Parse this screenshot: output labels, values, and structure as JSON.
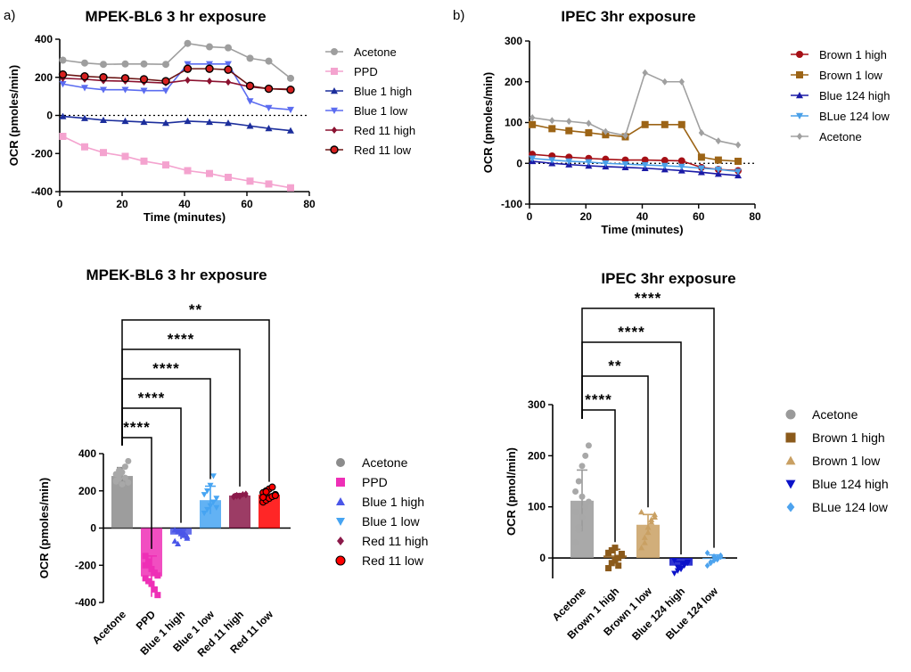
{
  "panel_labels": {
    "a": "a)",
    "b": "b)"
  },
  "chart_data": [
    {
      "id": "mpek_line",
      "type": "line",
      "title": "MPEK-BL6 3 hr exposure",
      "xlabel": "Time (minutes)",
      "ylabel": "OCR (pmoles/min)",
      "xlim": [
        0,
        80
      ],
      "ylim": [
        -400,
        400
      ],
      "xticks": [
        0,
        20,
        40,
        60,
        80
      ],
      "yticks": [
        -400,
        -200,
        0,
        200,
        400
      ],
      "zero_line": "dotted",
      "legend": "right",
      "x": [
        1,
        8,
        14,
        21,
        27,
        34,
        41,
        48,
        54,
        61,
        67,
        74
      ],
      "series": [
        {
          "name": "Acetone",
          "color": "#9e9e9e",
          "marker": "circle",
          "values": [
            290,
            275,
            268,
            270,
            270,
            268,
            378,
            360,
            355,
            300,
            285,
            195
          ]
        },
        {
          "name": "PPD",
          "color": "#f4a3cf",
          "marker": "square",
          "values": [
            -110,
            -165,
            -195,
            -215,
            -240,
            -260,
            -290,
            -305,
            -325,
            -345,
            -360,
            -380
          ]
        },
        {
          "name": "Blue 1 high",
          "color": "#1c2e9c",
          "marker": "triangle-up",
          "values": [
            -5,
            -15,
            -25,
            -30,
            -35,
            -40,
            -30,
            -35,
            -40,
            -55,
            -68,
            -80
          ]
        },
        {
          "name": "Blue 1 low",
          "color": "#5b6cf0",
          "marker": "triangle-down",
          "values": [
            165,
            145,
            135,
            135,
            130,
            130,
            270,
            270,
            270,
            75,
            40,
            30
          ]
        },
        {
          "name": "Red 11 high",
          "color": "#8b1230",
          "marker": "diamond",
          "values": [
            195,
            190,
            182,
            180,
            175,
            170,
            185,
            180,
            175,
            150,
            140,
            138
          ]
        },
        {
          "name": "Red 11 low",
          "color": "#6b1515",
          "marker": "circle-red",
          "values": [
            215,
            205,
            200,
            195,
            190,
            180,
            245,
            245,
            240,
            155,
            140,
            135
          ]
        }
      ]
    },
    {
      "id": "ipec_line",
      "type": "line",
      "title": "IPEC 3hr exposure",
      "xlabel": "Time (minutes)",
      "ylabel": "OCR (pmoles/min)",
      "xlim": [
        0,
        80
      ],
      "ylim": [
        -100,
        300
      ],
      "xticks": [
        0,
        20,
        40,
        60,
        80
      ],
      "yticks": [
        -100,
        0,
        100,
        200,
        300
      ],
      "zero_line": "dotted",
      "legend": "right",
      "x": [
        1,
        8,
        14,
        21,
        27,
        34,
        41,
        48,
        54,
        61,
        67,
        74
      ],
      "series": [
        {
          "name": "Brown 1 high",
          "color": "#a50f15",
          "marker": "circle",
          "values": [
            22,
            18,
            15,
            12,
            10,
            8,
            8,
            7,
            6,
            -10,
            -15,
            -18
          ]
        },
        {
          "name": "Brown 1 low",
          "color": "#9c6416",
          "marker": "square",
          "values": [
            95,
            85,
            80,
            75,
            70,
            65,
            95,
            95,
            95,
            15,
            8,
            5
          ]
        },
        {
          "name": "Blue 124 high",
          "color": "#1a1aa6",
          "marker": "triangle-up",
          "values": [
            5,
            0,
            -3,
            -6,
            -8,
            -10,
            -12,
            -15,
            -18,
            -22,
            -26,
            -30
          ]
        },
        {
          "name": "BLue 124 low",
          "color": "#4aa0e8",
          "marker": "triangle-down",
          "values": [
            12,
            8,
            5,
            3,
            0,
            -2,
            -4,
            -6,
            -8,
            -12,
            -15,
            -20
          ]
        },
        {
          "name": "Acetone",
          "color": "#a0a0a0",
          "marker": "diamond",
          "values": [
            112,
            105,
            103,
            98,
            78,
            68,
            222,
            200,
            200,
            75,
            55,
            45
          ]
        }
      ]
    },
    {
      "id": "mpek_bar",
      "type": "bar",
      "title": "MPEK-BL6 3 hr exposure",
      "xlabel": "",
      "ylabel": "OCR (pmoles/min)",
      "ylim": [
        -400,
        400
      ],
      "yticks": [
        -400,
        -200,
        0,
        200,
        400
      ],
      "legend": "right",
      "categories": [
        "Acetone",
        "PPD",
        "Blue 1 high",
        "Blue 1 low",
        "Red 11 high",
        "Red 11 low"
      ],
      "series": [
        {
          "name": "Acetone",
          "color": "#8c8c8c",
          "marker": "circle",
          "mean": 280,
          "sd": 45,
          "points": [
            250,
            265,
            300,
            330,
            245,
            290,
            310,
            235,
            270,
            360,
            255,
            285
          ]
        },
        {
          "name": "PPD",
          "color": "#ee2fb6",
          "marker": "square",
          "mean": -260,
          "sd": 110,
          "points": [
            -150,
            -190,
            -220,
            -240,
            -255,
            -270,
            -285,
            -300,
            -330,
            -360,
            -200,
            -180
          ]
        },
        {
          "name": "Blue 1 high",
          "color": "#4a56e8",
          "marker": "triangle-up",
          "mean": -35,
          "sd": 25,
          "points": [
            -10,
            -20,
            -30,
            -40,
            -55,
            -70,
            -85,
            -15,
            -25,
            -45
          ]
        },
        {
          "name": "Blue 1 low",
          "color": "#46a4f2",
          "marker": "triangle-down",
          "mean": 150,
          "sd": 75,
          "points": [
            80,
            100,
            120,
            140,
            160,
            180,
            200,
            230,
            280,
            110
          ]
        },
        {
          "name": "Red 11 high",
          "color": "#8b1a4a",
          "marker": "diamond",
          "mean": 175,
          "sd": 10,
          "points": [
            165,
            170,
            175,
            180,
            185,
            172,
            178,
            168,
            182,
            176
          ]
        },
        {
          "name": "Red 11 low",
          "color": "#ff0000",
          "marker": "circle-outline",
          "mean": 180,
          "sd": 30,
          "points": [
            140,
            150,
            160,
            170,
            180,
            190,
            200,
            210,
            220,
            175,
            165,
            195
          ]
        }
      ],
      "significance": [
        {
          "from": "Acetone",
          "to": "PPD",
          "label": "****"
        },
        {
          "from": "Acetone",
          "to": "Blue 1 high",
          "label": "****"
        },
        {
          "from": "Acetone",
          "to": "Blue 1 low",
          "label": "****"
        },
        {
          "from": "Acetone",
          "to": "Red 11 high",
          "label": "****"
        },
        {
          "from": "Acetone",
          "to": "Red 11 low",
          "label": "**"
        }
      ]
    },
    {
      "id": "ipec_bar",
      "type": "bar",
      "title": "IPEC 3hr exposure",
      "xlabel": "",
      "ylabel": "OCR (pmol/min)",
      "ylim": [
        -40,
        300
      ],
      "yticks": [
        0,
        100,
        200,
        300
      ],
      "legend": "right",
      "categories": [
        "Acetone",
        "Brown 1 high",
        "Brown 1 low",
        "Blue 124 high",
        "BLue 124 low"
      ],
      "series": [
        {
          "name": "Acetone",
          "color": "#9a9a9a",
          "marker": "circle",
          "mean": 112,
          "sd": 60,
          "points": [
            30,
            60,
            80,
            100,
            110,
            130,
            150,
            180,
            200,
            220,
            90,
            55,
            120
          ]
        },
        {
          "name": "Brown 1 high",
          "color": "#8b5a1b",
          "marker": "square",
          "mean": 5,
          "sd": 12,
          "points": [
            -20,
            -10,
            -5,
            0,
            5,
            10,
            15,
            20,
            -15,
            8
          ]
        },
        {
          "name": "Brown 1 low",
          "color": "#c9a063",
          "marker": "triangle-up",
          "mean": 65,
          "sd": 20,
          "points": [
            20,
            40,
            60,
            70,
            80,
            90,
            30,
            50,
            75,
            85
          ]
        },
        {
          "name": "Blue 124 high",
          "color": "#0b12c9",
          "marker": "triangle-down",
          "mean": -15,
          "sd": 8,
          "points": [
            -30,
            -25,
            -20,
            -15,
            -10,
            -5,
            -18,
            -22,
            -12,
            -8
          ]
        },
        {
          "name": "BLue 124 low",
          "color": "#4da3ee",
          "marker": "diamond",
          "mean": -2,
          "sd": 8,
          "points": [
            -15,
            -10,
            -5,
            0,
            5,
            10,
            -8,
            3,
            -3,
            2
          ]
        }
      ],
      "significance": [
        {
          "from": "Acetone",
          "to": "Brown 1 high",
          "label": "****"
        },
        {
          "from": "Acetone",
          "to": "Brown 1 low",
          "label": "**"
        },
        {
          "from": "Acetone",
          "to": "Blue 124 high",
          "label": "****"
        },
        {
          "from": "Acetone",
          "to": "BLue 124 low",
          "label": "****"
        }
      ]
    }
  ]
}
